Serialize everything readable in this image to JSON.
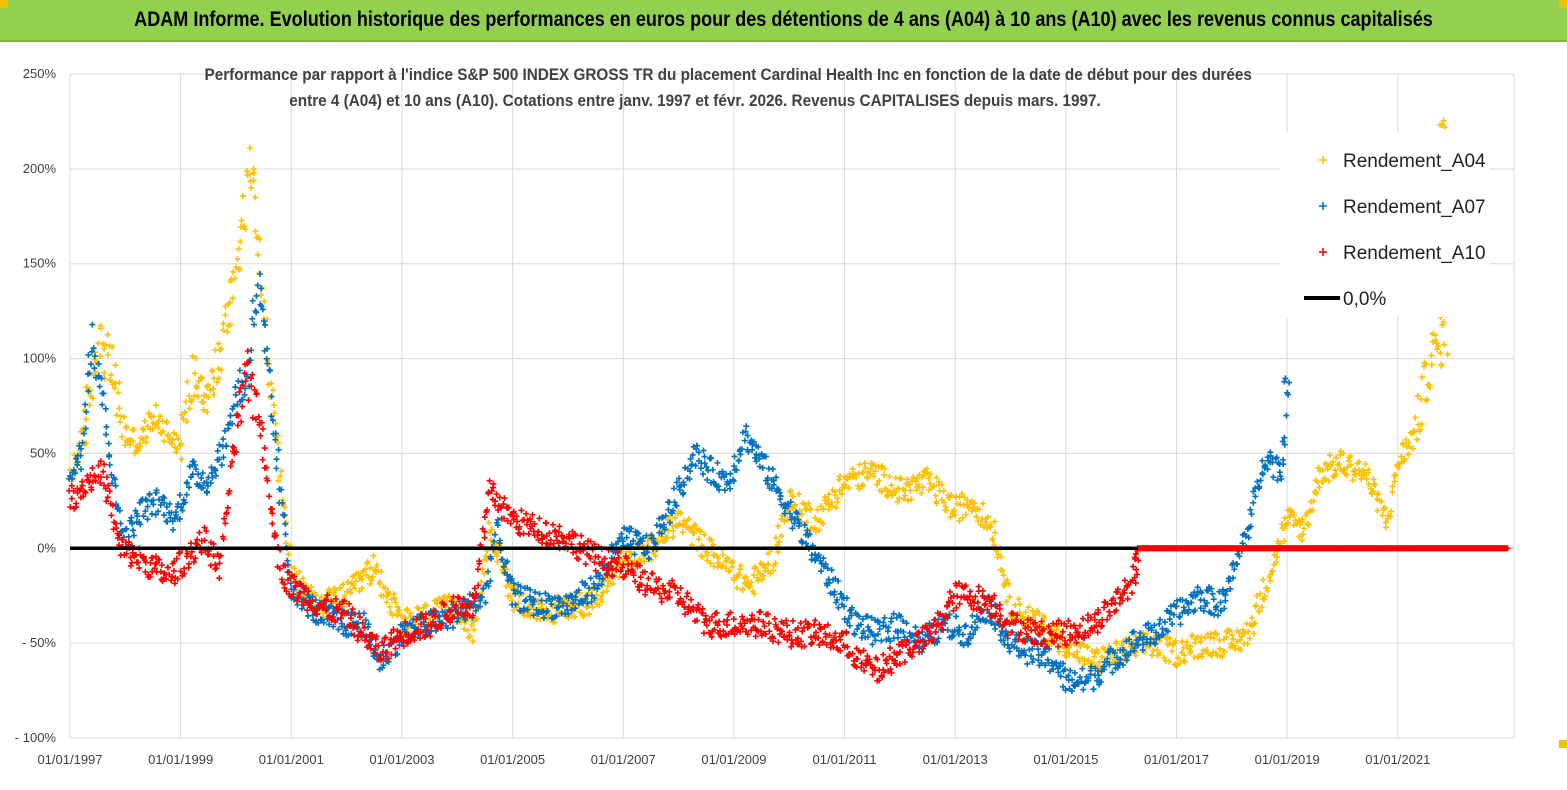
{
  "header": {
    "title": "ADAM Informe. Evolution historique des performances en euros pour des détentions de 4 ans (A04) à 10 ans (A10) avec les revenus connus capitalisés"
  },
  "colors": {
    "header_bg": "#92d050",
    "A04": "#ffc000",
    "A07": "#0070c0",
    "A10": "#ff0000",
    "zero_line": "#000000"
  },
  "chart_data": {
    "type": "scatter",
    "title": "Performance par rapport à l'indice S&P 500 INDEX GROSS TR  du placement Cardinal Health Inc en fonction de la date de début pour des durées entre 4 (A04) et 10 ans (A10).  Cotations entre janv. 1997 et févr. 2026. Revenus  CAPITALISES depuis mars. 1997.",
    "title_lines": [
      "Performance par rapport à l'indice S&P 500 INDEX GROSS TR  du placement Cardinal Health Inc en fonction de la date de début pour des durées",
      "entre 4 (A04) et 10 ans (A10).  Cotations entre janv. 1997 et févr. 2026. Revenus  CAPITALISES depuis mars. 1997."
    ],
    "xlabel": "",
    "ylabel": "",
    "x_ticks": [
      "01/01/1997",
      "01/01/1999",
      "01/01/2001",
      "01/01/2003",
      "01/01/2005",
      "01/01/2007",
      "01/01/2009",
      "01/01/2011",
      "01/01/2013",
      "01/01/2015",
      "01/01/2017",
      "01/01/2019",
      "01/01/2021"
    ],
    "xlim": [
      1997.0,
      2023.1
    ],
    "y_ticks": [
      "250%",
      "200%",
      "150%",
      "100%",
      "50%",
      "0%",
      "- 50%",
      "- 100%"
    ],
    "ylim": [
      -100,
      250
    ],
    "grid": true,
    "legend_position": "top-right",
    "legend": [
      "Rendement_A04",
      "Rendement_A07",
      "Rendement_A10",
      "0,0%"
    ],
    "series": [
      {
        "name": "Rendement_A04",
        "x": [
          1997.0,
          1997.25,
          1997.5,
          1997.75,
          1998.0,
          1998.25,
          1998.5,
          1998.75,
          1999.0,
          1999.25,
          1999.5,
          1999.75,
          2000.0,
          2000.15,
          2000.3,
          2000.45,
          2000.6,
          2000.8,
          2001.0,
          2001.5,
          2002.0,
          2002.5,
          2003.0,
          2003.5,
          2004.0,
          2004.3,
          2004.6,
          2005.0,
          2005.5,
          2006.0,
          2006.5,
          2007.0,
          2007.5,
          2008.0,
          2008.5,
          2008.9,
          2009.3,
          2009.7,
          2010.0,
          2010.5,
          2011.0,
          2011.5,
          2012.0,
          2012.5,
          2013.0,
          2013.3,
          2013.7,
          2014.0,
          2014.5,
          2015.0,
          2015.5,
          2016.0,
          2016.5,
          2017.0,
          2017.5,
          2018.0,
          2018.3,
          2018.6,
          2019.0,
          2019.3,
          2019.6,
          2020.0,
          2020.4,
          2020.8,
          2021.0,
          2021.3,
          2021.6,
          2021.9
        ],
        "y": [
          35,
          60,
          110,
          95,
          60,
          55,
          70,
          62,
          55,
          95,
          80,
          105,
          150,
          175,
          205,
          150,
          90,
          40,
          -15,
          -30,
          -25,
          -10,
          -40,
          -35,
          -30,
          -45,
          10,
          -25,
          -35,
          -30,
          -28,
          -5,
          0,
          15,
          0,
          -10,
          -20,
          -5,
          25,
          15,
          35,
          40,
          30,
          35,
          20,
          25,
          10,
          -30,
          -40,
          -50,
          -60,
          -55,
          -50,
          -55,
          -50,
          -50,
          -45,
          -20,
          15,
          10,
          40,
          45,
          40,
          15,
          45,
          60,
          100,
          115
        ],
        "y_extra": {
          "x": 2021.8,
          "y": 225
        }
      },
      {
        "name": "Rendement_A07",
        "x": [
          1997.0,
          1997.2,
          1997.4,
          1997.6,
          1997.8,
          1998.0,
          1998.3,
          1998.6,
          1998.9,
          1999.2,
          1999.5,
          1999.8,
          2000.0,
          2000.2,
          2000.4,
          2000.6,
          2000.8,
          2001.0,
          2001.5,
          2002.0,
          2002.3,
          2002.6,
          2003.0,
          2003.5,
          2004.0,
          2004.5,
          2004.7,
          2005.0,
          2005.5,
          2006.0,
          2006.5,
          2007.0,
          2007.5,
          2008.0,
          2008.3,
          2008.6,
          2008.9,
          2009.2,
          2009.5,
          2009.8,
          2010.0,
          2010.3,
          2010.6,
          2010.9,
          2011.2,
          2011.6,
          2012.0,
          2012.4,
          2012.8,
          2013.2,
          2013.6,
          2014.0,
          2014.4,
          2014.8,
          2015.0,
          2015.4,
          2015.8,
          2016.2,
          2016.6,
          2017.0,
          2017.4,
          2017.8,
          2018.0,
          2018.3,
          2018.6,
          2018.9,
          2019.0
        ],
        "y": [
          40,
          50,
          115,
          80,
          30,
          5,
          20,
          25,
          15,
          40,
          35,
          55,
          80,
          90,
          140,
          85,
          30,
          -20,
          -35,
          -40,
          -40,
          -60,
          -45,
          -40,
          -35,
          -25,
          10,
          -25,
          -30,
          -30,
          -20,
          5,
          0,
          30,
          50,
          40,
          35,
          60,
          45,
          30,
          20,
          5,
          -10,
          -25,
          -40,
          -45,
          -40,
          -50,
          -40,
          -45,
          -30,
          -50,
          -55,
          -60,
          -70,
          -70,
          -60,
          -50,
          -45,
          -35,
          -25,
          -30,
          -15,
          10,
          50,
          40,
          80
        ],
        "y_extra": {
          "x": 2019.0,
          "y": 85
        }
      },
      {
        "name": "Rendement_A10",
        "x": [
          1997.0,
          1997.3,
          1997.6,
          1997.9,
          1998.2,
          1998.5,
          1998.8,
          1999.1,
          1999.4,
          1999.7,
          2000.0,
          2000.2,
          2000.4,
          2000.6,
          2000.8,
          2001.0,
          2001.5,
          2002.0,
          2002.3,
          2002.6,
          2003.0,
          2003.5,
          2004.0,
          2004.3,
          2004.6,
          2005.0,
          2005.5,
          2006.0,
          2006.5,
          2007.0,
          2007.5,
          2008.0,
          2008.5,
          2009.0,
          2009.5,
          2010.0,
          2010.5,
          2011.0,
          2011.3,
          2011.6,
          2012.0,
          2012.3,
          2012.6,
          2013.0,
          2013.3,
          2013.7,
          2014.0,
          2014.5,
          2015.0,
          2015.5,
          2016.0,
          2016.25,
          2016.3,
          2017.0,
          2018.0,
          2019.0,
          2020.0,
          2021.0,
          2022.0,
          2023.0
        ],
        "y": [
          25,
          35,
          40,
          0,
          -5,
          -10,
          -15,
          -5,
          5,
          -10,
          60,
          90,
          75,
          30,
          -10,
          -20,
          -30,
          -35,
          -45,
          -55,
          -45,
          -40,
          -30,
          -30,
          30,
          15,
          10,
          5,
          -5,
          -10,
          -20,
          -25,
          -40,
          -40,
          -40,
          -45,
          -45,
          -50,
          -60,
          -65,
          -55,
          -50,
          -45,
          -25,
          -25,
          -30,
          -40,
          -45,
          -45,
          -40,
          -25,
          -15,
          0,
          0,
          0,
          0,
          0,
          0,
          0,
          0
        ]
      }
    ]
  }
}
